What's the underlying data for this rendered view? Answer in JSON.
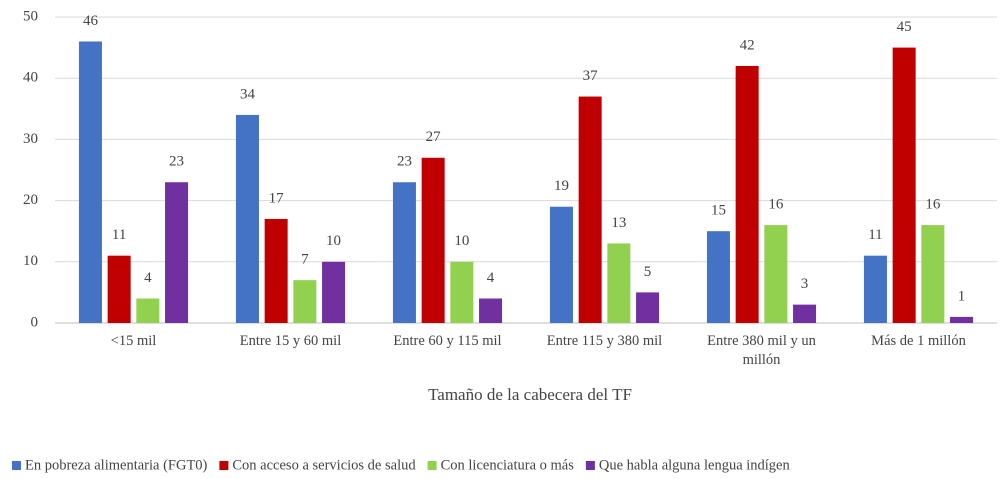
{
  "chart_data": {
    "type": "bar",
    "xlabel": "Tamaño de la cabecera del TF",
    "categories": [
      "<15 mil",
      "Entre 15 y 60 mil",
      "Entre 60 y 115 mil",
      "Entre 115 y 380 mil",
      "Entre 380 mil y un millón",
      "Más de 1 millón"
    ],
    "series": [
      {
        "name": "En pobreza alimentaria (FGT0)",
        "color": "#4472c4",
        "values": [
          46,
          34,
          23,
          19,
          15,
          11
        ]
      },
      {
        "name": "Con acceso a servicios de salud",
        "color": "#c00000",
        "values": [
          11,
          17,
          27,
          37,
          42,
          45
        ]
      },
      {
        "name": "Con licenciatura o más",
        "color": "#92d050",
        "values": [
          4,
          7,
          10,
          13,
          16,
          16
        ]
      },
      {
        "name": "Que habla alguna lengua indígen",
        "color": "#7030a0",
        "values": [
          23,
          10,
          4,
          5,
          3,
          1
        ]
      }
    ],
    "ylim": [
      0,
      50
    ],
    "yticks": [
      0,
      10,
      20,
      30,
      40,
      50
    ],
    "grid": true,
    "legend": "bottom"
  }
}
